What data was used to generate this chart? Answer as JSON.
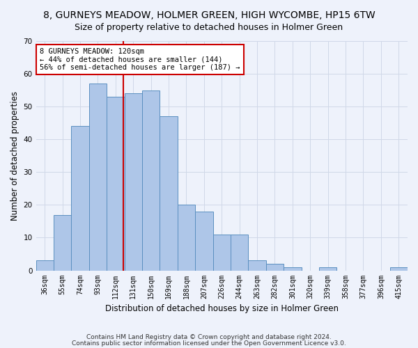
{
  "title": "8, GURNEYS MEADOW, HOLMER GREEN, HIGH WYCOMBE, HP15 6TW",
  "subtitle": "Size of property relative to detached houses in Holmer Green",
  "xlabel": "Distribution of detached houses by size in Holmer Green",
  "ylabel": "Number of detached properties",
  "bin_labels": [
    "36sqm",
    "55sqm",
    "74sqm",
    "93sqm",
    "112sqm",
    "131sqm",
    "150sqm",
    "169sqm",
    "188sqm",
    "207sqm",
    "226sqm",
    "244sqm",
    "263sqm",
    "282sqm",
    "301sqm",
    "320sqm",
    "339sqm",
    "358sqm",
    "377sqm",
    "396sqm",
    "415sqm"
  ],
  "bar_heights": [
    3,
    17,
    44,
    57,
    53,
    54,
    55,
    47,
    20,
    18,
    11,
    11,
    3,
    2,
    1,
    0,
    1,
    0,
    0,
    0,
    1
  ],
  "bar_color": "#aec6e8",
  "bar_edge_color": "#5a8fc0",
  "vline_color": "#cc0000",
  "annotation_text": "8 GURNEYS MEADOW: 120sqm\n← 44% of detached houses are smaller (144)\n56% of semi-detached houses are larger (187) →",
  "annotation_box_color": "#ffffff",
  "annotation_box_edgecolor": "#cc0000",
  "ylim": [
    0,
    70
  ],
  "yticks": [
    0,
    10,
    20,
    30,
    40,
    50,
    60,
    70
  ],
  "grid_color": "#d0d8e8",
  "background_color": "#eef2fb",
  "footer_line1": "Contains HM Land Registry data © Crown copyright and database right 2024.",
  "footer_line2": "Contains public sector information licensed under the Open Government Licence v3.0.",
  "title_fontsize": 10,
  "xlabel_fontsize": 8.5,
  "ylabel_fontsize": 8.5,
  "tick_fontsize": 7,
  "annotation_fontsize": 7.5,
  "footer_fontsize": 6.5
}
